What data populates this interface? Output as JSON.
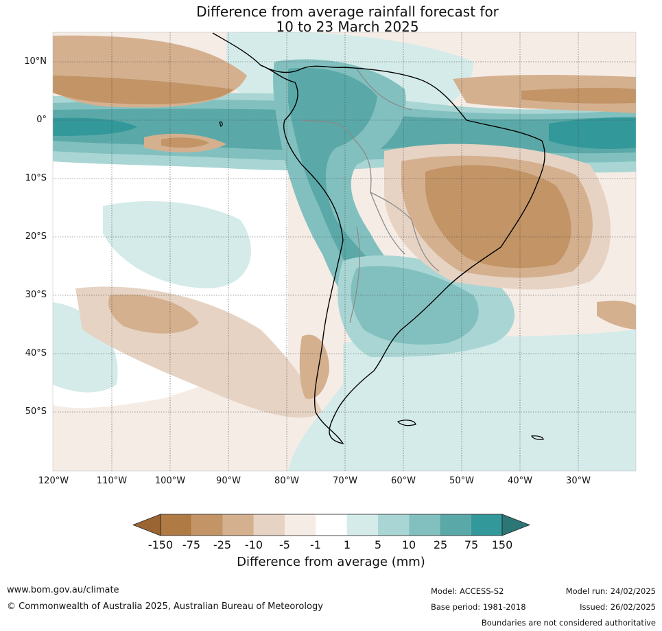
{
  "title": {
    "line1": "Difference from average rainfall forecast for",
    "line2": "10 to 23 March 2025"
  },
  "map": {
    "lat_labels": [
      "10°N",
      "0°",
      "10°S",
      "20°S",
      "30°S",
      "40°S",
      "50°S"
    ],
    "lon_labels": [
      "120°W",
      "110°W",
      "100°W",
      "90°W",
      "80°W",
      "70°W",
      "60°W",
      "50°W",
      "40°W",
      "30°W"
    ],
    "colors": {
      "ocean_bg": "#f5ece6",
      "land_outline": "#000000",
      "country_borders": "#8a8a8a"
    }
  },
  "legend": {
    "title": "Difference from average (mm)",
    "ticks": [
      "-150",
      "-75",
      "-25",
      "-10",
      "-5",
      "-1",
      "1",
      "5",
      "10",
      "25",
      "75",
      "150"
    ],
    "colors": [
      "#9b6533",
      "#b07a45",
      "#c29466",
      "#d4b08f",
      "#e6d3c3",
      "#f5ece6",
      "#ffffff",
      "#d4ebe9",
      "#a9d6d4",
      "#82c0bf",
      "#5aa9a8",
      "#33989a",
      "#2c7676"
    ]
  },
  "footer": {
    "website": "www.bom.gov.au/climate",
    "copyright": "© Commonwealth of Australia 2025, Australian Bureau of Meteorology",
    "model": "Model: ACCESS-S2",
    "base_period": "Base period: 1981-2018",
    "model_run": "Model run: 24/02/2025",
    "issued": "Issued: 26/02/2025",
    "disclaimer": "Boundaries are not considered authoritative"
  }
}
